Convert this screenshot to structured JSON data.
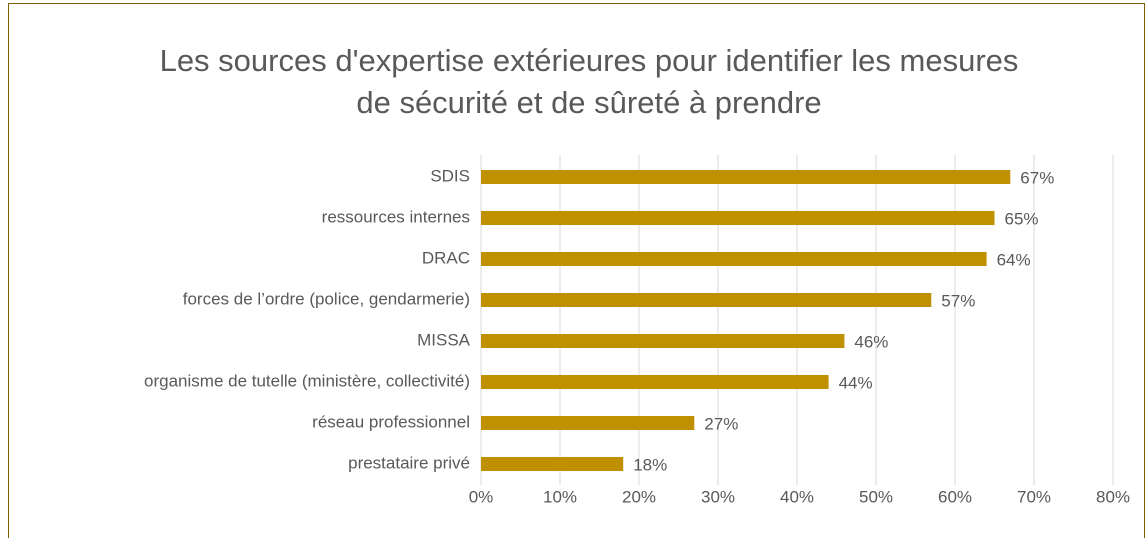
{
  "chart_data": {
    "type": "barh",
    "title": "Les sources d'expertise extérieures pour identifier les mesures de sécurité et de sûreté à prendre",
    "categories": [
      "SDIS",
      "ressources internes",
      "DRAC",
      "forces de l’ordre (police, gendarmerie)",
      "MISSA",
      "organisme de tutelle (ministère, collectivité)",
      "réseau professionnel",
      "prestataire privé"
    ],
    "values": [
      67,
      65,
      64,
      57,
      46,
      44,
      27,
      18
    ],
    "value_labels": [
      "67%",
      "65%",
      "64%",
      "57%",
      "46%",
      "44%",
      "27%",
      "18%"
    ],
    "color": "#bf9000",
    "xlim": [
      0,
      80
    ],
    "xticks": [
      {
        "value": 0,
        "label": "0%"
      },
      {
        "value": 10,
        "label": "10%"
      },
      {
        "value": 20,
        "label": "20%"
      },
      {
        "value": 30,
        "label": "30%"
      },
      {
        "value": 40,
        "label": "40%"
      },
      {
        "value": 50,
        "label": "50%"
      },
      {
        "value": 60,
        "label": "60%"
      },
      {
        "value": 70,
        "label": "70%"
      },
      {
        "value": 80,
        "label": "80%"
      }
    ],
    "grid": true
  }
}
